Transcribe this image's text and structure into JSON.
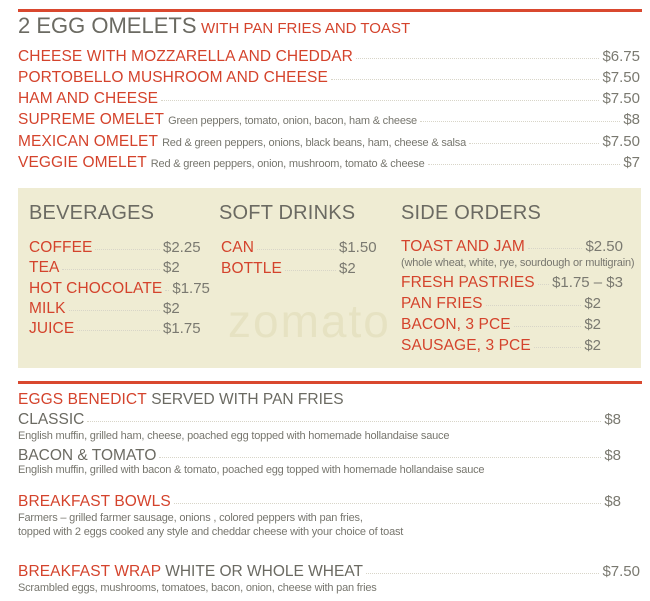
{
  "accent_color": "#d4432c",
  "box_color": "#efecd3",
  "omelets": {
    "title": "2 EGG OMELETS",
    "subtitle": "WITH PAN FRIES AND TOAST",
    "items": [
      {
        "name": "CHEESE WITH MOZZARELLA AND CHEDDAR",
        "desc": "",
        "price": "$6.75"
      },
      {
        "name": "PORTOBELLO MUSHROOM AND CHEESE",
        "desc": "",
        "price": "$7.50"
      },
      {
        "name": "HAM AND CHEESE",
        "desc": "",
        "price": "$7.50"
      },
      {
        "name": "SUPREME OMELET",
        "desc": "Green peppers, tomato, onion, bacon, ham & cheese",
        "price": "$8"
      },
      {
        "name": "MEXICAN OMELET",
        "desc": "Red & green peppers, onions, black beans, ham, cheese & salsa",
        "price": "$7.50"
      },
      {
        "name": "VEGGIE OMELET",
        "desc": "Red & green peppers, onion, mushroom, tomato & cheese",
        "price": "$7"
      }
    ]
  },
  "watermark": "zomato",
  "beverages": {
    "title": "BEVERAGES",
    "items": [
      {
        "name": "COFFEE",
        "price": "$2.25"
      },
      {
        "name": "TEA",
        "price": "$2"
      },
      {
        "name": "HOT CHOCOLATE",
        "price": "$1.75"
      },
      {
        "name": "MILK",
        "price": "$2"
      },
      {
        "name": "JUICE",
        "price": "$1.75"
      }
    ]
  },
  "soft_drinks": {
    "title": "SOFT DRINKS",
    "items": [
      {
        "name": "CAN",
        "price": "$1.50"
      },
      {
        "name": "BOTTLE",
        "price": "$2"
      }
    ]
  },
  "side_orders": {
    "title": "SIDE ORDERS",
    "items": [
      {
        "name": "TOAST AND JAM",
        "price": "$2.50",
        "note": "(whole wheat, white, rye, sourdough or multigrain)"
      },
      {
        "name": "FRESH PASTRIES",
        "price": "$1.75 – $3"
      },
      {
        "name": "PAN FRIES",
        "price": "$2"
      },
      {
        "name": "BACON, 3 PCE",
        "price": "$2"
      },
      {
        "name": "SAUSAGE, 3 PCE",
        "price": "$2"
      }
    ]
  },
  "benedict": {
    "title": "EGGS BENEDICT",
    "subtitle": "SERVED WITH PAN FRIES",
    "items": [
      {
        "name": "CLASSIC",
        "price": "$8",
        "desc": "English muffin, grilled ham, cheese, poached egg topped with homemade hollandaise sauce"
      },
      {
        "name": "BACON & TOMATO",
        "price": "$8",
        "desc": "English muffin, grilled with bacon & tomato, poached egg topped with homemade hollandaise sauce"
      }
    ]
  },
  "bowls": {
    "name": "BREAKFAST BOWLS",
    "price": "$8",
    "desc1": "Farmers – grilled farmer sausage, onions , colored peppers with pan fries,",
    "desc2": "topped with 2 eggs cooked any style and cheddar cheese with your choice of toast"
  },
  "wrap": {
    "name": "BREAKFAST WRAP",
    "subtitle": "WHITE OR WHOLE WHEAT",
    "price": "$7.50",
    "desc": "Scrambled eggs, mushrooms, tomatoes, bacon, onion, cheese with pan fries"
  }
}
